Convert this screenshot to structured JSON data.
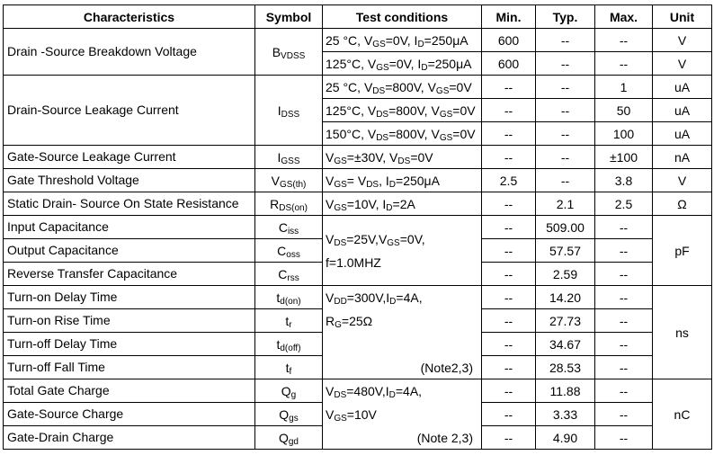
{
  "table": {
    "header": [
      "Characteristics",
      "Symbol",
      "Test conditions",
      "Min.",
      "Typ.",
      "Max.",
      "Unit"
    ],
    "rows": [
      {
        "characteristic": "Drain -Source Breakdown Voltage",
        "symbol": [
          "B",
          {
            "sub": "VDSS"
          }
        ],
        "conditions": [
          [
            "25 °C,  V",
            {
              "sub": "GS"
            },
            "=0V, I",
            {
              "sub": "D"
            },
            "=250μA"
          ]
        ],
        "min": "600",
        "typ": "--",
        "max": "--",
        "unit": "V"
      },
      {
        "conditions": [
          [
            "125°C, V",
            {
              "sub": "GS"
            },
            "=0V, I",
            {
              "sub": "D"
            },
            "=250μA"
          ]
        ],
        "min": "600",
        "typ": "--",
        "max": "--",
        "unit": "V"
      },
      {
        "characteristic": "Drain-Source Leakage Current",
        "symbol": [
          "I",
          {
            "sub": "DSS"
          }
        ],
        "conditions": [
          [
            "25 °C, V",
            {
              "sub": "DS"
            },
            "=800V, V",
            {
              "sub": "GS"
            },
            "=0V"
          ]
        ],
        "min": "--",
        "typ": "--",
        "max": "1",
        "unit": "uA"
      },
      {
        "conditions": [
          [
            "125°C, V",
            {
              "sub": "DS"
            },
            "=800V, V",
            {
              "sub": "GS"
            },
            "=0V"
          ]
        ],
        "min": "--",
        "typ": "--",
        "max": "50",
        "unit": "uA"
      },
      {
        "conditions": [
          [
            "150°C, V",
            {
              "sub": "DS"
            },
            "=800V, V",
            {
              "sub": "GS"
            },
            "=0V"
          ]
        ],
        "min": "--",
        "typ": "--",
        "max": "100",
        "unit": "uA"
      },
      {
        "characteristic": "Gate-Source Leakage Current",
        "symbol": [
          "I",
          {
            "sub": "GSS"
          }
        ],
        "conditions": [
          [
            "V",
            {
              "sub": "GS"
            },
            "=±30V, V",
            {
              "sub": "DS"
            },
            "=0V"
          ]
        ],
        "min": "--",
        "typ": "--",
        "max": "±100",
        "unit": "nA"
      },
      {
        "characteristic": "Gate Threshold Voltage",
        "symbol": [
          "V",
          {
            "sub": "GS(th)"
          }
        ],
        "conditions": [
          [
            "V",
            {
              "sub": "GS"
            },
            "= V",
            {
              "sub": "DS"
            },
            ", I",
            {
              "sub": "D"
            },
            "=250μA"
          ]
        ],
        "min": "2.5",
        "typ": "--",
        "max": "3.8",
        "unit": "V"
      },
      {
        "characteristic": "Static Drain- Source On State Resistance",
        "symbol": [
          "R",
          {
            "sub": "DS(on)"
          }
        ],
        "conditions": [
          [
            "V",
            {
              "sub": "GS"
            },
            "=10V, I",
            {
              "sub": "D"
            },
            "=2A"
          ]
        ],
        "min": "--",
        "typ": "2.1",
        "max": "2.5",
        "unit": "Ω"
      },
      {
        "characteristic": "Input Capacitance",
        "symbol": [
          "C",
          {
            "sub": "iss"
          }
        ],
        "conditions": [
          [
            "V",
            {
              "sub": "DS"
            },
            "=25V,V",
            {
              "sub": "GS"
            },
            "=0V,"
          ],
          [
            "f=1.0MHZ"
          ]
        ],
        "min": "--",
        "typ": "509.00",
        "max": "--",
        "unit": "pF"
      },
      {
        "characteristic": "Output Capacitance",
        "symbol": [
          "C",
          {
            "sub": "oss"
          }
        ],
        "min": "--",
        "typ": "57.57",
        "max": "--"
      },
      {
        "characteristic": "Reverse Transfer Capacitance",
        "symbol": [
          "C",
          {
            "sub": "rss"
          }
        ],
        "min": "--",
        "typ": "2.59",
        "max": "--"
      },
      {
        "characteristic": "Turn-on Delay Time",
        "symbol": [
          "t",
          {
            "sub": "d(on)"
          }
        ],
        "conditions": [
          [
            "V",
            {
              "sub": "DD"
            },
            "=300V,I",
            {
              "sub": "D"
            },
            "=4A,"
          ],
          [
            "R",
            {
              "sub": "G"
            },
            "=25Ω"
          ]
        ],
        "note": "(Note2,3)",
        "min": "--",
        "typ": "14.20",
        "max": "--",
        "unit": "ns"
      },
      {
        "characteristic": "Turn-on Rise Time",
        "symbol": [
          "t",
          {
            "sub": "r"
          }
        ],
        "min": "--",
        "typ": "27.73",
        "max": "--"
      },
      {
        "characteristic": "Turn-off Delay Time",
        "symbol": [
          "t",
          {
            "sub": "d(off)"
          }
        ],
        "min": "--",
        "typ": "34.67",
        "max": "--"
      },
      {
        "characteristic": "Turn-off Fall Time",
        "symbol": [
          "t",
          {
            "sub": "f"
          }
        ],
        "min": "--",
        "typ": "28.53",
        "max": "--"
      },
      {
        "characteristic": "Total Gate Charge",
        "symbol": [
          "Q",
          {
            "sub": "g"
          }
        ],
        "conditions": [
          [
            "V",
            {
              "sub": "DS"
            },
            "=480V,I",
            {
              "sub": "D"
            },
            "=4A,"
          ],
          [
            "V",
            {
              "sub": "GS"
            },
            "=10V"
          ]
        ],
        "note": "(Note 2,3)",
        "min": "--",
        "typ": "11.88",
        "max": "--",
        "unit": "nC"
      },
      {
        "characteristic": "Gate-Source Charge",
        "symbol": [
          "Q",
          {
            "sub": "gs"
          }
        ],
        "min": "--",
        "typ": "3.33",
        "max": "--"
      },
      {
        "characteristic": "Gate-Drain Charge",
        "symbol": [
          "Q",
          {
            "sub": "gd"
          }
        ],
        "min": "--",
        "typ": "4.90",
        "max": "--"
      }
    ]
  }
}
